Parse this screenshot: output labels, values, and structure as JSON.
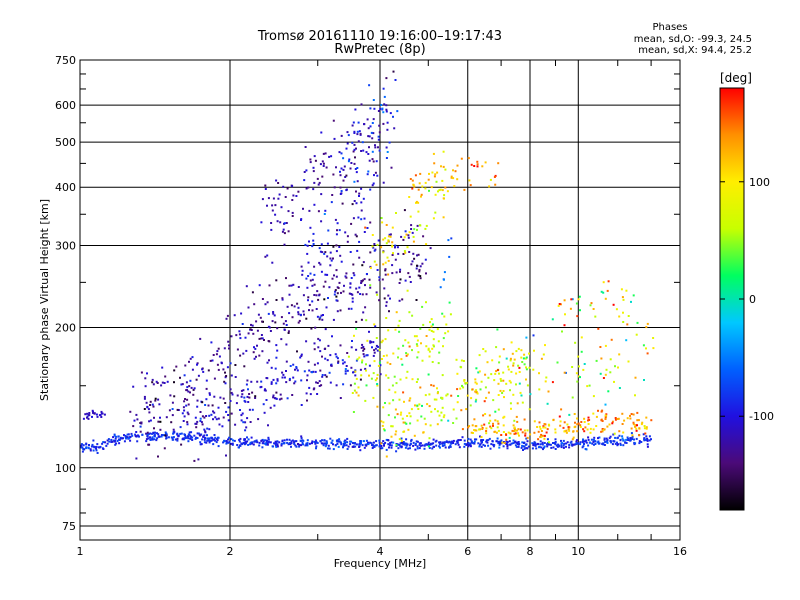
{
  "chart_data": {
    "type": "scatter",
    "title": "Tromsø 20161110 19:16:00–19:17:43",
    "subtitle": "RwPretec (8p)",
    "xlabel": "Frequency [MHz]",
    "ylabel": "Stationary phase Virtual Height [km]",
    "x_scale": "log",
    "y_scale": "log",
    "xlim": [
      1,
      16
    ],
    "ylim": [
      70,
      750
    ],
    "x_ticks": [
      1,
      2,
      4,
      6,
      8,
      10,
      16
    ],
    "x_tick_labels": [
      "1",
      "2",
      "4",
      "6",
      "8",
      "10",
      "16"
    ],
    "x_minor_ticks": [
      3,
      5,
      7,
      9,
      12,
      14
    ],
    "y_ticks": [
      75,
      100,
      200,
      300,
      400,
      500,
      600,
      750
    ],
    "y_tick_labels": [
      "75",
      "100",
      "200",
      "300",
      "400",
      "500",
      "600",
      "750"
    ],
    "y_minor_ticks": [
      80,
      90,
      150,
      250,
      350,
      450,
      550,
      650,
      700
    ],
    "grid": true,
    "stats": {
      "title": "Phases",
      "line_o": "mean, sd,O: -99.3, 24.5",
      "line_x": "mean, sd,X:  94.4, 25.2"
    },
    "colorbar": {
      "label": "[deg]",
      "range": [
        -180,
        180
      ],
      "ticks": [
        100,
        0,
        -100
      ],
      "tick_labels": [
        "100",
        "0",
        "-100"
      ]
    },
    "colors": {
      "gradient": [
        "#000000",
        "#4b0a78",
        "#2010e0",
        "#0060ff",
        "#00c8ff",
        "#00ff60",
        "#c8ff00",
        "#ffee00",
        "#ff9000",
        "#ff0000"
      ]
    },
    "traces": [
      {
        "x": [
          1.0,
          1.1,
          1.2,
          1.3,
          1.5,
          1.8,
          2.0,
          2.5,
          3.0,
          3.5,
          4.0,
          5.0,
          6.0,
          7.0,
          8.0,
          9.0,
          10.0,
          12.0,
          14.0
        ],
        "y": [
          110,
          112,
          116,
          117,
          117,
          116,
          114,
          113,
          113,
          113,
          112,
          112,
          113,
          113,
          112,
          112,
          113,
          114,
          115
        ],
        "spread": 0.012,
        "phase": -85,
        "phase_sd": 12,
        "density": 1.0
      },
      {
        "x": [
          1.0,
          1.08,
          1.12
        ],
        "y": [
          129,
          130,
          130
        ],
        "spread": 0.01,
        "phase": -110,
        "phase_sd": 10,
        "density": 0.6
      },
      {
        "x": [
          1.25,
          1.4,
          1.6,
          1.8,
          2.0,
          2.3,
          2.6,
          3.0,
          3.5,
          4.0,
          4.5,
          5.0
        ],
        "y": [
          128,
          135,
          145,
          160,
          180,
          200,
          215,
          230,
          245,
          260,
          270,
          275
        ],
        "spread": 0.1,
        "phase": -125,
        "phase_sd": 22,
        "density": 0.9
      },
      {
        "x": [
          1.6,
          1.9,
          2.2,
          2.5,
          3.0,
          3.5,
          4.0
        ],
        "y": [
          125,
          130,
          140,
          150,
          160,
          170,
          180
        ],
        "spread": 0.07,
        "phase": -110,
        "phase_sd": 18,
        "density": 0.8
      },
      {
        "x": [
          2.3,
          2.5,
          2.7,
          3.0,
          3.3,
          3.6,
          4.0
        ],
        "y": [
          330,
          360,
          380,
          400,
          430,
          470,
          520
        ],
        "spread": 0.1,
        "phase": -120,
        "phase_sd": 15,
        "density": 0.7
      },
      {
        "x": [
          2.8,
          3.0,
          3.2,
          3.5,
          3.8,
          4.0,
          4.2
        ],
        "y": [
          260,
          280,
          300,
          340,
          400,
          460,
          540
        ],
        "spread": 0.12,
        "phase": -100,
        "phase_sd": 25,
        "density": 0.7
      },
      {
        "x": [
          3.3,
          3.5,
          3.8,
          4.0,
          4.3
        ],
        "y": [
          450,
          520,
          580,
          600,
          620
        ],
        "spread": 0.09,
        "phase": -90,
        "phase_sd": 25,
        "density": 0.5
      },
      {
        "x": [
          3.5,
          3.8,
          4.0,
          4.3,
          4.6,
          5.0,
          5.5
        ],
        "y": [
          160,
          165,
          170,
          180,
          185,
          190,
          200
        ],
        "spread": 0.1,
        "phase": 70,
        "phase_sd": 30,
        "density": 0.8
      },
      {
        "x": [
          3.8,
          4.1,
          4.5,
          5.0,
          5.5
        ],
        "y": [
          290,
          300,
          320,
          380,
          420
        ],
        "spread": 0.09,
        "phase": 95,
        "phase_sd": 30,
        "density": 0.6
      },
      {
        "x": [
          4.0,
          4.5,
          5.0,
          5.5,
          6.0,
          7.0,
          8.0
        ],
        "y": [
          125,
          130,
          135,
          140,
          150,
          160,
          170
        ],
        "spread": 0.08,
        "phase": 85,
        "phase_sd": 35,
        "density": 0.8
      },
      {
        "x": [
          5.3,
          5.5,
          5.6
        ],
        "y": [
          230,
          280,
          320
        ],
        "spread": 0.05,
        "phase": -60,
        "phase_sd": 10,
        "density": 0.4
      },
      {
        "x": [
          6.0,
          7.0,
          8.0,
          9.0,
          10.0,
          11.0,
          12.0,
          13.0,
          14.0
        ],
        "y": [
          120,
          122,
          120,
          121,
          123,
          124,
          125,
          125,
          124
        ],
        "spread": 0.03,
        "phase": 130,
        "phase_sd": 25,
        "density": 0.7
      },
      {
        "x": [
          6.5,
          7.5,
          8.5,
          10.0,
          12.0,
          14.0
        ],
        "y": [
          140,
          150,
          160,
          170,
          180,
          175
        ],
        "spread": 0.12,
        "phase": 60,
        "phase_sd": 60,
        "density": 0.4
      },
      {
        "x": [
          4.5,
          5.0,
          6.0,
          7.0
        ],
        "y": [
          400,
          420,
          430,
          430
        ],
        "spread": 0.04,
        "phase": 130,
        "phase_sd": 20,
        "density": 0.3
      },
      {
        "x": [
          9.0,
          10.0,
          11.0,
          12.0,
          13.0
        ],
        "y": [
          220,
          225,
          230,
          232,
          230
        ],
        "spread": 0.06,
        "phase": 100,
        "phase_sd": 60,
        "density": 0.25
      }
    ]
  }
}
